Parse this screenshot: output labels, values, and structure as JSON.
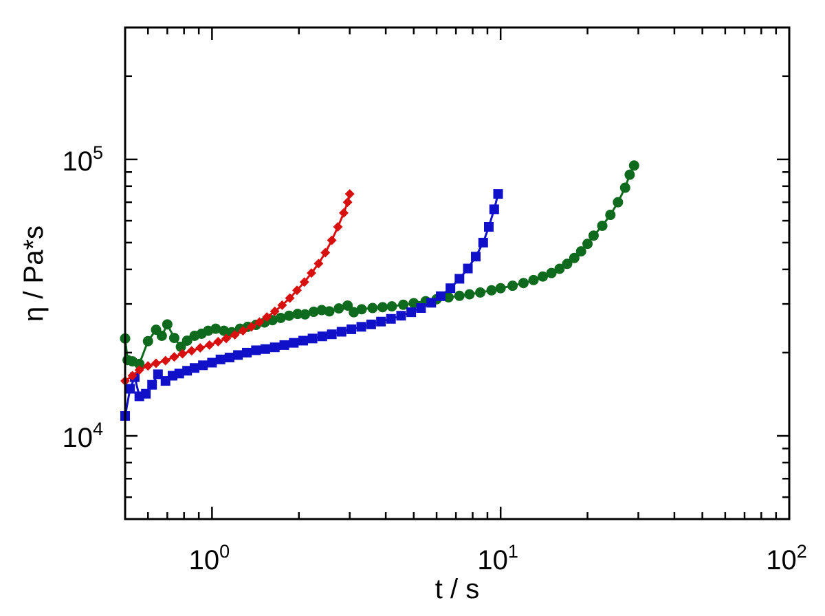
{
  "chart_data": {
    "type": "line",
    "xscale": "log",
    "yscale": "log",
    "xlabel": "t / s",
    "ylabel": "η / Pa*s",
    "xlim": [
      0.5,
      100
    ],
    "ylim": [
      5000,
      300000
    ],
    "grid": false,
    "x_major_ticks": [
      {
        "value": 1,
        "base": "10",
        "exp": "0"
      },
      {
        "value": 10,
        "base": "10",
        "exp": "1"
      },
      {
        "value": 100,
        "base": "10",
        "exp": "2"
      }
    ],
    "y_major_ticks": [
      {
        "value": 10000,
        "base": "10",
        "exp": "4"
      },
      {
        "value": 100000,
        "base": "10",
        "exp": "5"
      }
    ],
    "series": [
      {
        "marker": "circle",
        "color": "#0e6a1c",
        "points": [
          [
            0.5,
            22500
          ],
          [
            0.51,
            18800
          ],
          [
            0.53,
            18600
          ],
          [
            0.56,
            18200
          ],
          [
            0.6,
            22000
          ],
          [
            0.64,
            24200
          ],
          [
            0.67,
            23000
          ],
          [
            0.7,
            25300
          ],
          [
            0.74,
            22600
          ],
          [
            0.78,
            21000
          ],
          [
            0.82,
            22100
          ],
          [
            0.87,
            23000
          ],
          [
            0.92,
            23400
          ],
          [
            0.97,
            24000
          ],
          [
            1.03,
            24400
          ],
          [
            1.1,
            24000
          ],
          [
            1.17,
            23700
          ],
          [
            1.25,
            24400
          ],
          [
            1.33,
            24800
          ],
          [
            1.42,
            25200
          ],
          [
            1.52,
            25700
          ],
          [
            1.62,
            26200
          ],
          [
            1.73,
            26700
          ],
          [
            1.85,
            27200
          ],
          [
            1.98,
            27600
          ],
          [
            2.1,
            27500
          ],
          [
            2.25,
            28100
          ],
          [
            2.4,
            28500
          ],
          [
            2.55,
            28200
          ],
          [
            2.75,
            28900
          ],
          [
            2.95,
            29600
          ],
          [
            3.1,
            28000
          ],
          [
            3.3,
            28700
          ],
          [
            3.6,
            29000
          ],
          [
            3.9,
            29200
          ],
          [
            4.2,
            29400
          ],
          [
            4.6,
            29800
          ],
          [
            5.0,
            30200
          ],
          [
            5.5,
            30700
          ],
          [
            6.0,
            31200
          ],
          [
            6.6,
            31700
          ],
          [
            7.2,
            32100
          ],
          [
            7.8,
            32500
          ],
          [
            8.5,
            33000
          ],
          [
            9.3,
            33600
          ],
          [
            10.0,
            34200
          ],
          [
            11.0,
            34900
          ],
          [
            12.0,
            35700
          ],
          [
            13.0,
            36600
          ],
          [
            14.0,
            37700
          ],
          [
            15.0,
            38800
          ],
          [
            16.0,
            40200
          ],
          [
            17.0,
            41900
          ],
          [
            18.0,
            44000
          ],
          [
            19.0,
            46500
          ],
          [
            20.0,
            49500
          ],
          [
            21.0,
            53000
          ],
          [
            22.5,
            57500
          ],
          [
            24.0,
            63000
          ],
          [
            25.5,
            70000
          ],
          [
            27.0,
            79000
          ],
          [
            28.0,
            88000
          ],
          [
            29.0,
            95000
          ]
        ]
      },
      {
        "marker": "square",
        "color": "#1010c8",
        "points": [
          [
            0.5,
            11800
          ],
          [
            0.52,
            14800
          ],
          [
            0.54,
            16300
          ],
          [
            0.56,
            13900
          ],
          [
            0.59,
            14200
          ],
          [
            0.62,
            15300
          ],
          [
            0.65,
            16700
          ],
          [
            0.69,
            15800
          ],
          [
            0.73,
            16500
          ],
          [
            0.77,
            16800
          ],
          [
            0.82,
            17200
          ],
          [
            0.87,
            17600
          ],
          [
            0.93,
            18000
          ],
          [
            1.0,
            18400
          ],
          [
            1.07,
            18900
          ],
          [
            1.15,
            19200
          ],
          [
            1.23,
            19600
          ],
          [
            1.32,
            20000
          ],
          [
            1.42,
            20400
          ],
          [
            1.53,
            20600
          ],
          [
            1.65,
            20900
          ],
          [
            1.78,
            21300
          ],
          [
            1.92,
            21700
          ],
          [
            2.07,
            22100
          ],
          [
            2.23,
            22500
          ],
          [
            2.41,
            22900
          ],
          [
            2.6,
            23300
          ],
          [
            2.81,
            23800
          ],
          [
            3.04,
            24300
          ],
          [
            3.29,
            24800
          ],
          [
            3.56,
            25300
          ],
          [
            3.85,
            25900
          ],
          [
            4.17,
            26500
          ],
          [
            4.52,
            27200
          ],
          [
            4.9,
            28000
          ],
          [
            5.3,
            29000
          ],
          [
            5.75,
            30300
          ],
          [
            6.2,
            32000
          ],
          [
            6.7,
            34200
          ],
          [
            7.2,
            37000
          ],
          [
            7.7,
            40300
          ],
          [
            8.2,
            44500
          ],
          [
            8.7,
            50000
          ],
          [
            9.1,
            57000
          ],
          [
            9.5,
            66000
          ],
          [
            9.8,
            75000
          ]
        ]
      },
      {
        "marker": "diamond",
        "color": "#d80f0f",
        "points": [
          [
            0.5,
            15800
          ],
          [
            0.53,
            16500
          ],
          [
            0.56,
            17300
          ],
          [
            0.6,
            17900
          ],
          [
            0.64,
            18300
          ],
          [
            0.69,
            18700
          ],
          [
            0.74,
            19300
          ],
          [
            0.79,
            19800
          ],
          [
            0.85,
            20300
          ],
          [
            0.91,
            20800
          ],
          [
            0.98,
            21300
          ],
          [
            1.05,
            21900
          ],
          [
            1.12,
            22500
          ],
          [
            1.2,
            23200
          ],
          [
            1.28,
            24000
          ],
          [
            1.37,
            24800
          ],
          [
            1.46,
            25800
          ],
          [
            1.55,
            26900
          ],
          [
            1.65,
            28200
          ],
          [
            1.75,
            29700
          ],
          [
            1.86,
            31500
          ],
          [
            1.97,
            33600
          ],
          [
            2.09,
            36000
          ],
          [
            2.21,
            38800
          ],
          [
            2.34,
            42000
          ],
          [
            2.47,
            46000
          ],
          [
            2.6,
            51000
          ],
          [
            2.73,
            57000
          ],
          [
            2.86,
            64000
          ],
          [
            2.95,
            70000
          ],
          [
            3.0,
            75000
          ]
        ]
      }
    ]
  }
}
